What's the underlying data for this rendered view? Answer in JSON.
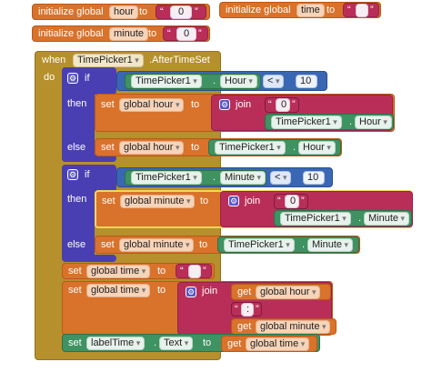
{
  "globals": {
    "init_label": "initialize global",
    "to": "to",
    "hour": {
      "name": "hour",
      "value": "0"
    },
    "time": {
      "name": "time",
      "value": ""
    },
    "minute": {
      "name": "minute",
      "value": "0"
    }
  },
  "event": {
    "when": "when",
    "component": "TimePicker1",
    "event": ".AfterTimeSet",
    "do": "do"
  },
  "if1": {
    "if": "if",
    "then": "then",
    "else": "else",
    "cond_component": "TimePicker1",
    "cond_prop": "Hour",
    "op": "<",
    "num": "10",
    "set": "set",
    "var": "global hour",
    "to": "to",
    "join": "join",
    "str": "0",
    "join_component": "TimePicker1",
    "join_prop": "Hour",
    "else_component": "TimePicker1",
    "else_prop": "Hour"
  },
  "if2": {
    "if": "if",
    "then": "then",
    "else": "else",
    "cond_component": "TimePicker1",
    "cond_prop": "Minute",
    "op": "<",
    "num": "10",
    "set": "set",
    "var": "global minute",
    "to": "to",
    "join": "join",
    "str": "0",
    "join_component": "TimePicker1",
    "join_prop": "Minute",
    "else_component": "TimePicker1",
    "else_prop": "Minute"
  },
  "set_time_empty": {
    "set": "set",
    "var": "global time",
    "to": "to",
    "str": ""
  },
  "set_time_join": {
    "set": "set",
    "var": "global time",
    "to": "to",
    "join": "join",
    "get": "get",
    "get1": "global hour",
    "str": ":",
    "get2": "global minute"
  },
  "set_label": {
    "set": "set",
    "component": "labelTime",
    "prop": "Text",
    "to": "to",
    "get": "get",
    "var": "global time"
  },
  "colors": {
    "variable": "#d9722b",
    "text": "#b92e58",
    "event": "#b5902c",
    "component": "#3f9262",
    "math": "#3a67b3",
    "control": "#4a3fb2"
  },
  "icons": [
    "gear-icon",
    "dropdown-arrow-icon"
  ]
}
